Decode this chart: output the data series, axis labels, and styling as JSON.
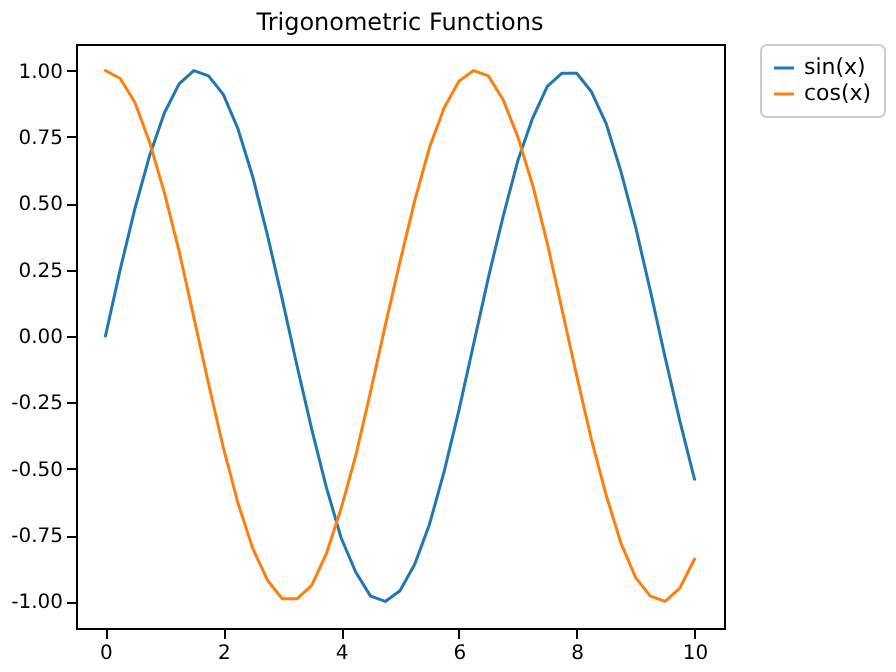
{
  "chart_data": {
    "type": "line",
    "title": "Trigonometric Functions",
    "x": [
      0,
      0.25,
      0.5,
      0.75,
      1,
      1.25,
      1.5,
      1.75,
      2,
      2.25,
      2.5,
      2.75,
      3,
      3.25,
      3.5,
      3.75,
      4,
      4.25,
      4.5,
      4.75,
      5,
      5.25,
      5.5,
      5.75,
      6,
      6.25,
      6.5,
      6.75,
      7,
      7.25,
      7.5,
      7.75,
      8,
      8.25,
      8.5,
      8.75,
      9,
      9.25,
      9.5,
      9.75,
      10
    ],
    "series": [
      {
        "name": "sin(x)",
        "color": "#1f77b4",
        "values": [
          0,
          0.25,
          0.48,
          0.68,
          0.84,
          0.95,
          1.0,
          0.98,
          0.91,
          0.78,
          0.6,
          0.38,
          0.14,
          -0.11,
          -0.35,
          -0.57,
          -0.76,
          -0.89,
          -0.98,
          -1.0,
          -0.96,
          -0.86,
          -0.71,
          -0.51,
          -0.28,
          -0.03,
          0.22,
          0.45,
          0.66,
          0.82,
          0.94,
          0.99,
          0.99,
          0.92,
          0.8,
          0.62,
          0.41,
          0.17,
          -0.08,
          -0.32,
          -0.54
        ]
      },
      {
        "name": "cos(x)",
        "color": "#ff7f0e",
        "values": [
          1.0,
          0.97,
          0.88,
          0.73,
          0.54,
          0.32,
          0.07,
          -0.18,
          -0.42,
          -0.63,
          -0.8,
          -0.92,
          -0.99,
          -0.99,
          -0.94,
          -0.82,
          -0.65,
          -0.45,
          -0.21,
          0.04,
          0.28,
          0.51,
          0.71,
          0.86,
          0.96,
          1.0,
          0.98,
          0.89,
          0.75,
          0.57,
          0.35,
          0.1,
          -0.15,
          -0.39,
          -0.6,
          -0.78,
          -0.91,
          -0.98,
          -1.0,
          -0.95,
          -0.84
        ]
      }
    ],
    "xlim": [
      -0.5,
      10.5
    ],
    "ylim": [
      -1.1,
      1.1
    ],
    "xticks": [
      0,
      2,
      4,
      6,
      8,
      10
    ],
    "yticks": [
      {
        "value": -1,
        "label": "-1.00"
      },
      {
        "value": -0.75,
        "label": "-0.75"
      },
      {
        "value": -0.5,
        "label": "-0.50"
      },
      {
        "value": -0.25,
        "label": "-0.25"
      },
      {
        "value": 0,
        "label": "0.00"
      },
      {
        "value": 0.25,
        "label": "0.25"
      },
      {
        "value": 0.5,
        "label": "0.50"
      },
      {
        "value": 0.75,
        "label": "0.75"
      },
      {
        "value": 1,
        "label": "1.00"
      }
    ],
    "grid": false,
    "legend": "top right",
    "line_style": "solid",
    "marker": "none"
  }
}
